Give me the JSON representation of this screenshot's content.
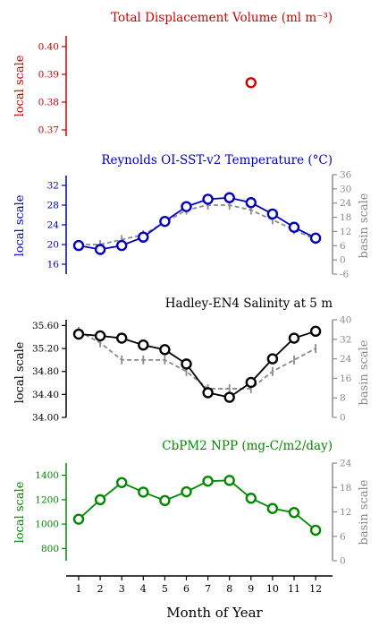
{
  "x_axis": {
    "label": "Month of Year",
    "ticks": [
      "1",
      "2",
      "3",
      "4",
      "5",
      "6",
      "7",
      "8",
      "9",
      "10",
      "11",
      "12"
    ]
  },
  "chart_data": [
    {
      "type": "scatter",
      "title": "Total Displacement Volume (ml m⁻³)",
      "color": "#cc0000",
      "left_label": "local scale",
      "left_ylim": [
        0.37,
        0.4
      ],
      "left_ticks": [
        "0.37",
        "0.38",
        "0.39",
        "0.40"
      ],
      "x": [
        9
      ],
      "values": [
        0.387
      ]
    },
    {
      "type": "line",
      "title": "Reynolds OI-SST-v2 Temperature (°C)",
      "color": "#0000bb",
      "left_label": "local scale",
      "left_ylim": [
        14,
        34
      ],
      "left_ticks": [
        "16",
        "20",
        "24",
        "28",
        "32"
      ],
      "right_label": "basin scale",
      "right_ylim": [
        -6,
        36
      ],
      "right_ticks": [
        "-6",
        "0",
        "6",
        "12",
        "18",
        "24",
        "30",
        "36"
      ],
      "x": [
        1,
        2,
        3,
        4,
        5,
        6,
        7,
        8,
        9,
        10,
        11,
        12
      ],
      "values": [
        19.8,
        19.0,
        19.8,
        21.5,
        24.7,
        27.7,
        29.2,
        29.5,
        28.5,
        26.2,
        23.5,
        21.3
      ],
      "basin_values": [
        20,
        20,
        21,
        22,
        24.5,
        27,
        28,
        28,
        27,
        25,
        23,
        21
      ]
    },
    {
      "type": "line",
      "title": "Hadley-EN4 Salinity at 5 m",
      "color": "#000000",
      "left_label": "local scale",
      "left_ylim": [
        34.0,
        35.7
      ],
      "left_ticks": [
        "34.00",
        "34.40",
        "34.80",
        "35.20",
        "35.60"
      ],
      "right_label": "basin scale",
      "right_ylim": [
        0,
        40
      ],
      "right_ticks": [
        "0",
        "8",
        "16",
        "24",
        "32",
        "40"
      ],
      "x": [
        1,
        2,
        3,
        4,
        5,
        6,
        7,
        8,
        9,
        10,
        11,
        12
      ],
      "values": [
        35.45,
        35.42,
        35.38,
        35.26,
        35.18,
        34.93,
        34.43,
        34.35,
        34.61,
        35.02,
        35.38,
        35.5
      ],
      "basin_values": [
        35.5,
        35.3,
        35.0,
        35.0,
        35.0,
        34.8,
        34.5,
        34.5,
        34.5,
        34.8,
        35.0,
        35.2
      ]
    },
    {
      "type": "line",
      "title": "CbPM2 NPP (mg-C/m2/day)",
      "color": "#008800",
      "left_label": "local scale",
      "left_ylim": [
        700,
        1500
      ],
      "left_ticks": [
        "800",
        "1000",
        "1200",
        "1400"
      ],
      "right_label": "basin scale",
      "right_ylim": [
        0,
        24
      ],
      "right_ticks": [
        "0",
        "6",
        "12",
        "18",
        "24"
      ],
      "x": [
        1,
        2,
        3,
        4,
        5,
        6,
        7,
        8,
        9,
        10,
        11,
        12
      ],
      "values": [
        1040,
        1200,
        1340,
        1262,
        1193,
        1265,
        1352,
        1358,
        1212,
        1128,
        1095,
        950
      ]
    }
  ]
}
